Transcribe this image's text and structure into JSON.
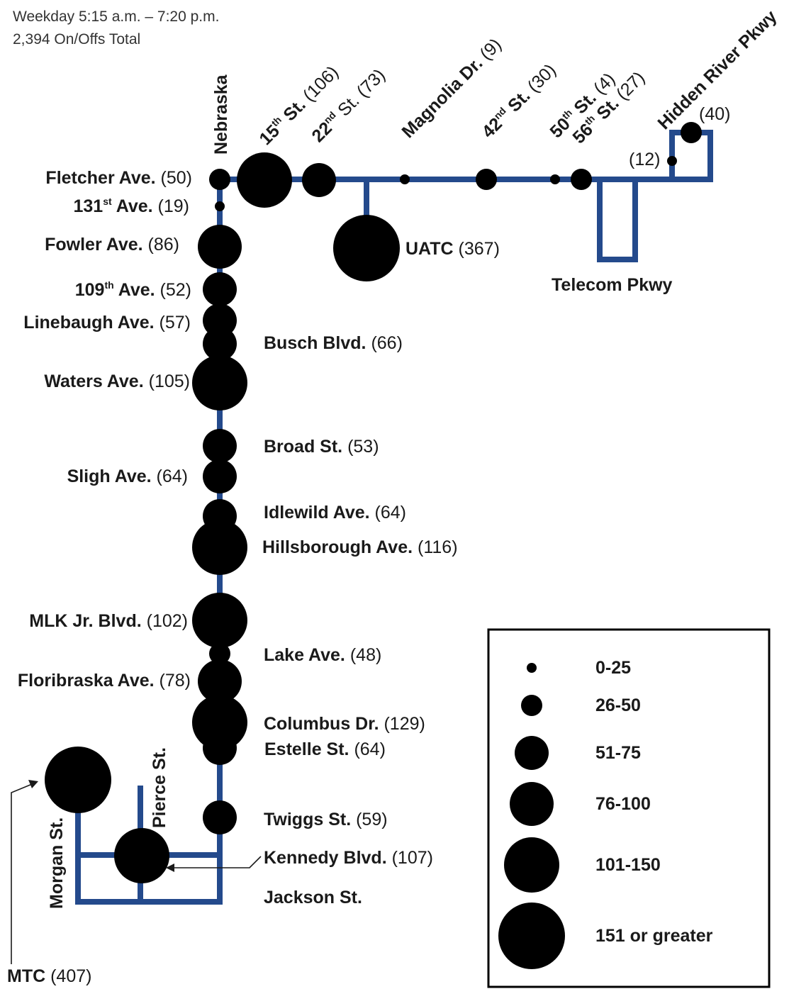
{
  "header": {
    "service_span": "Weekday 5:15 a.m. – 7:20 p.m.",
    "total": "2,394 On/Offs Total"
  },
  "colors": {
    "route": "#244a8c",
    "stop": "#000000",
    "text": "#1a1a1a"
  },
  "stops": {
    "fletcher": {
      "name": "Fletcher Ave.",
      "count": "(50)",
      "value": 50
    },
    "ave131": {
      "name": "131",
      "sup": "st",
      "name_rest": " Ave.",
      "count": "(19)",
      "value": 19
    },
    "fowler": {
      "name": "Fowler Ave.",
      "count": "(86)",
      "value": 86
    },
    "ave109": {
      "name": "109",
      "sup": "th",
      "name_rest": " Ave.",
      "count": "(52)",
      "value": 52
    },
    "linebaugh": {
      "name": "Linebaugh Ave.",
      "count": "(57)",
      "value": 57
    },
    "busch": {
      "name": "Busch Blvd.",
      "count": "(66)",
      "value": 66
    },
    "waters": {
      "name": "Waters Ave.",
      "count": "(105)",
      "value": 105
    },
    "broad": {
      "name": "Broad St.",
      "count": "(53)",
      "value": 53
    },
    "sligh": {
      "name": "Sligh Ave.",
      "count": "(64)",
      "value": 64
    },
    "idlewild": {
      "name": "Idlewild Ave.",
      "count": "(64)",
      "value": 64
    },
    "hillsborough": {
      "name": "Hillsborough Ave.",
      "count": "(116)",
      "value": 116
    },
    "mlk": {
      "name": "MLK Jr. Blvd.",
      "count": "(102)",
      "value": 102
    },
    "lake": {
      "name": "Lake Ave.",
      "count": "(48)",
      "value": 48
    },
    "floribraska": {
      "name": "Floribraska Ave.",
      "count": "(78)",
      "value": 78
    },
    "columbus": {
      "name": "Columbus Dr.",
      "count": "(129)",
      "value": 129
    },
    "estelle": {
      "name": "Estelle St.",
      "count": "(64)",
      "value": 64
    },
    "twiggs": {
      "name": "Twiggs St.",
      "count": "(59)",
      "value": 59
    },
    "kennedy": {
      "name": "Kennedy Blvd.",
      "count": "(107)",
      "value": 107
    },
    "mtc": {
      "name": "MTC",
      "count": "(407)",
      "value": 407
    },
    "uatc": {
      "name": "UATC",
      "count": "(367)",
      "value": 367
    },
    "st15": {
      "name": "15",
      "sup": "th",
      "name_rest": " St.",
      "count": "(106)",
      "value": 106
    },
    "st22": {
      "name": "22",
      "sup": "nd",
      "name_rest": " St.",
      "count": "(73)",
      "value": 73
    },
    "magnolia": {
      "name": "Magnolia Dr.",
      "count": "(9)",
      "value": 9
    },
    "st42": {
      "name": "42",
      "sup": "nd",
      "name_rest": " St.",
      "count": "(30)",
      "value": 30
    },
    "st50": {
      "name": "50",
      "sup": "th",
      "name_rest": " St.",
      "count": "(4)",
      "value": 4
    },
    "st56": {
      "name": "56",
      "sup": "th",
      "name_rest": " St.",
      "count": "(27)",
      "value": 27
    },
    "hidden_river_stop": {
      "count": "(40)",
      "value": 40
    },
    "hidden_river_small": {
      "count": "(12)",
      "value": 12
    }
  },
  "street_labels": {
    "nebraska": "Nebraska",
    "hidden_river": "Hidden River Pkwy",
    "telecom": "Telecom Pkwy",
    "jackson": "Jackson St.",
    "morgan": "Morgan St.",
    "pierce": "Pierce St."
  },
  "legend": {
    "items": [
      {
        "label": "0-25"
      },
      {
        "label": "26-50"
      },
      {
        "label": "51-75"
      },
      {
        "label": "76-100"
      },
      {
        "label": "101-150"
      },
      {
        "label": "151 or greater"
      }
    ]
  }
}
